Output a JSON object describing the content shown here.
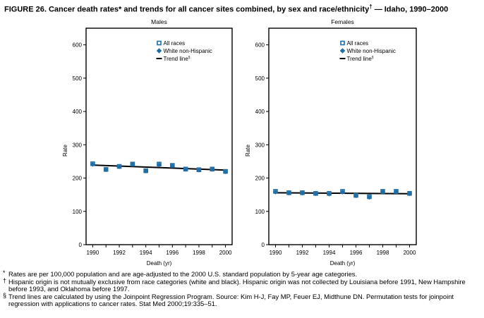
{
  "title": "FIGURE 26. Cancer death rates* and trends for all cancer sites combined, by sex and race/ethnicity",
  "title_mark": "†",
  "title_suffix": " — Idaho, 1990–2000",
  "chart_data": [
    {
      "type": "scatter",
      "title": "Males",
      "xlabel": "Death (yr)",
      "ylabel": "Rate",
      "xlim": [
        1989.5,
        2000.5
      ],
      "ylim": [
        0,
        650
      ],
      "yticks": [
        0,
        100,
        200,
        300,
        400,
        500,
        600
      ],
      "xticks": [
        1990,
        1992,
        1994,
        1996,
        1998,
        2000
      ],
      "legend_position": "top-right",
      "legend": [
        "All races",
        "White non-Hispanic",
        "Trend line"
      ],
      "legend_marks": [
        "",
        "",
        "§"
      ],
      "x": [
        1990,
        1991,
        1992,
        1993,
        1994,
        1995,
        1996,
        1997,
        1998,
        1999,
        2000
      ],
      "series": [
        {
          "name": "All races",
          "values": [
            243,
            226,
            235,
            242,
            222,
            242,
            238,
            227,
            225,
            227,
            220
          ]
        },
        {
          "name": "White non-Hispanic",
          "values": [
            241,
            225,
            234,
            241,
            221,
            240,
            237,
            226,
            224,
            226,
            219
          ]
        }
      ],
      "trend": {
        "name": "Trend line",
        "x": [
          1990,
          2000
        ],
        "values": [
          239,
          224
        ]
      }
    },
    {
      "type": "scatter",
      "title": "Females",
      "xlabel": "Death (yr)",
      "ylabel": "Rate",
      "xlim": [
        1989.5,
        2000.5
      ],
      "ylim": [
        0,
        650
      ],
      "yticks": [
        0,
        100,
        200,
        300,
        400,
        500,
        600
      ],
      "xticks": [
        1990,
        1992,
        1994,
        1996,
        1998,
        2000
      ],
      "legend_position": "top-right",
      "legend": [
        "All races",
        "White non-Hispanic",
        "Trend line"
      ],
      "legend_marks": [
        "",
        "",
        "§"
      ],
      "x": [
        1990,
        1991,
        1992,
        1993,
        1994,
        1995,
        1996,
        1997,
        1998,
        1999,
        2000
      ],
      "series": [
        {
          "name": "All races",
          "values": [
            160,
            156,
            156,
            154,
            154,
            160,
            148,
            144,
            160,
            160,
            154
          ]
        },
        {
          "name": "White non-Hispanic",
          "values": [
            158,
            155,
            155,
            153,
            152,
            158,
            147,
            142,
            159,
            159,
            153
          ]
        }
      ],
      "trend": {
        "name": "Trend line",
        "x": [
          1990,
          2000
        ],
        "values": [
          156,
          153
        ]
      }
    }
  ],
  "footnotes": [
    {
      "mark": "*",
      "text": "Rates are per 100,000 population and are age-adjusted to the 2000 U.S. standard population by 5-year age categories."
    },
    {
      "mark": "†",
      "text": "Hispanic origin is not mutually exclusive from race categories (white and black). Hispanic origin was not collected by Louisiana before 1991, New Hampshire before 1993, and Oklahoma before 1997."
    },
    {
      "mark": "§",
      "text": "Trend lines are calculated by using the Joinpoint Regression Program. Source: Kim H-J, Fay MP, Feuer EJ, Midthune DN. Permutation tests for joinpoint regression with applications to cancer rates. Stat Med 2000;19:335–51."
    }
  ],
  "colors": {
    "marker": "#1f6fa6",
    "axis": "#000000",
    "trend": "#000000"
  }
}
